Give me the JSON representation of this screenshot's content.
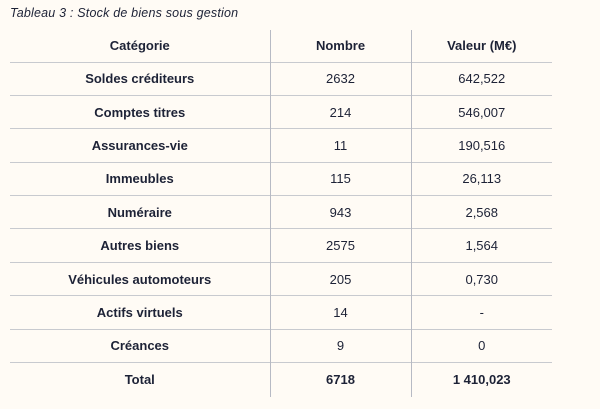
{
  "title": "Tableau 3 : Stock de biens sous gestion",
  "table": {
    "columns": [
      "Catégorie",
      "Nombre",
      "Valeur (M€)"
    ],
    "rows": [
      {
        "categorie": "Soldes créditeurs",
        "nombre": "2632",
        "valeur": "642,522"
      },
      {
        "categorie": "Comptes titres",
        "nombre": "214",
        "valeur": "546,007"
      },
      {
        "categorie": "Assurances-vie",
        "nombre": "11",
        "valeur": "190,516"
      },
      {
        "categorie": "Immeubles",
        "nombre": "115",
        "valeur": "26,113"
      },
      {
        "categorie": "Numéraire",
        "nombre": "943",
        "valeur": "2,568"
      },
      {
        "categorie": "Autres biens",
        "nombre": "2575",
        "valeur": "1,564"
      },
      {
        "categorie": "Véhicules automoteurs",
        "nombre": "205",
        "valeur": "0,730"
      },
      {
        "categorie": "Actifs virtuels",
        "nombre": "14",
        "valeur": "-"
      },
      {
        "categorie": "Créances",
        "nombre": "9",
        "valeur": "0"
      }
    ],
    "total": {
      "categorie": "Total",
      "nombre": "6718",
      "valeur": "1 410,023"
    }
  },
  "colors": {
    "text": "#1d2236",
    "grid_line": "#c3c6cd",
    "background": "#fffbf5"
  }
}
